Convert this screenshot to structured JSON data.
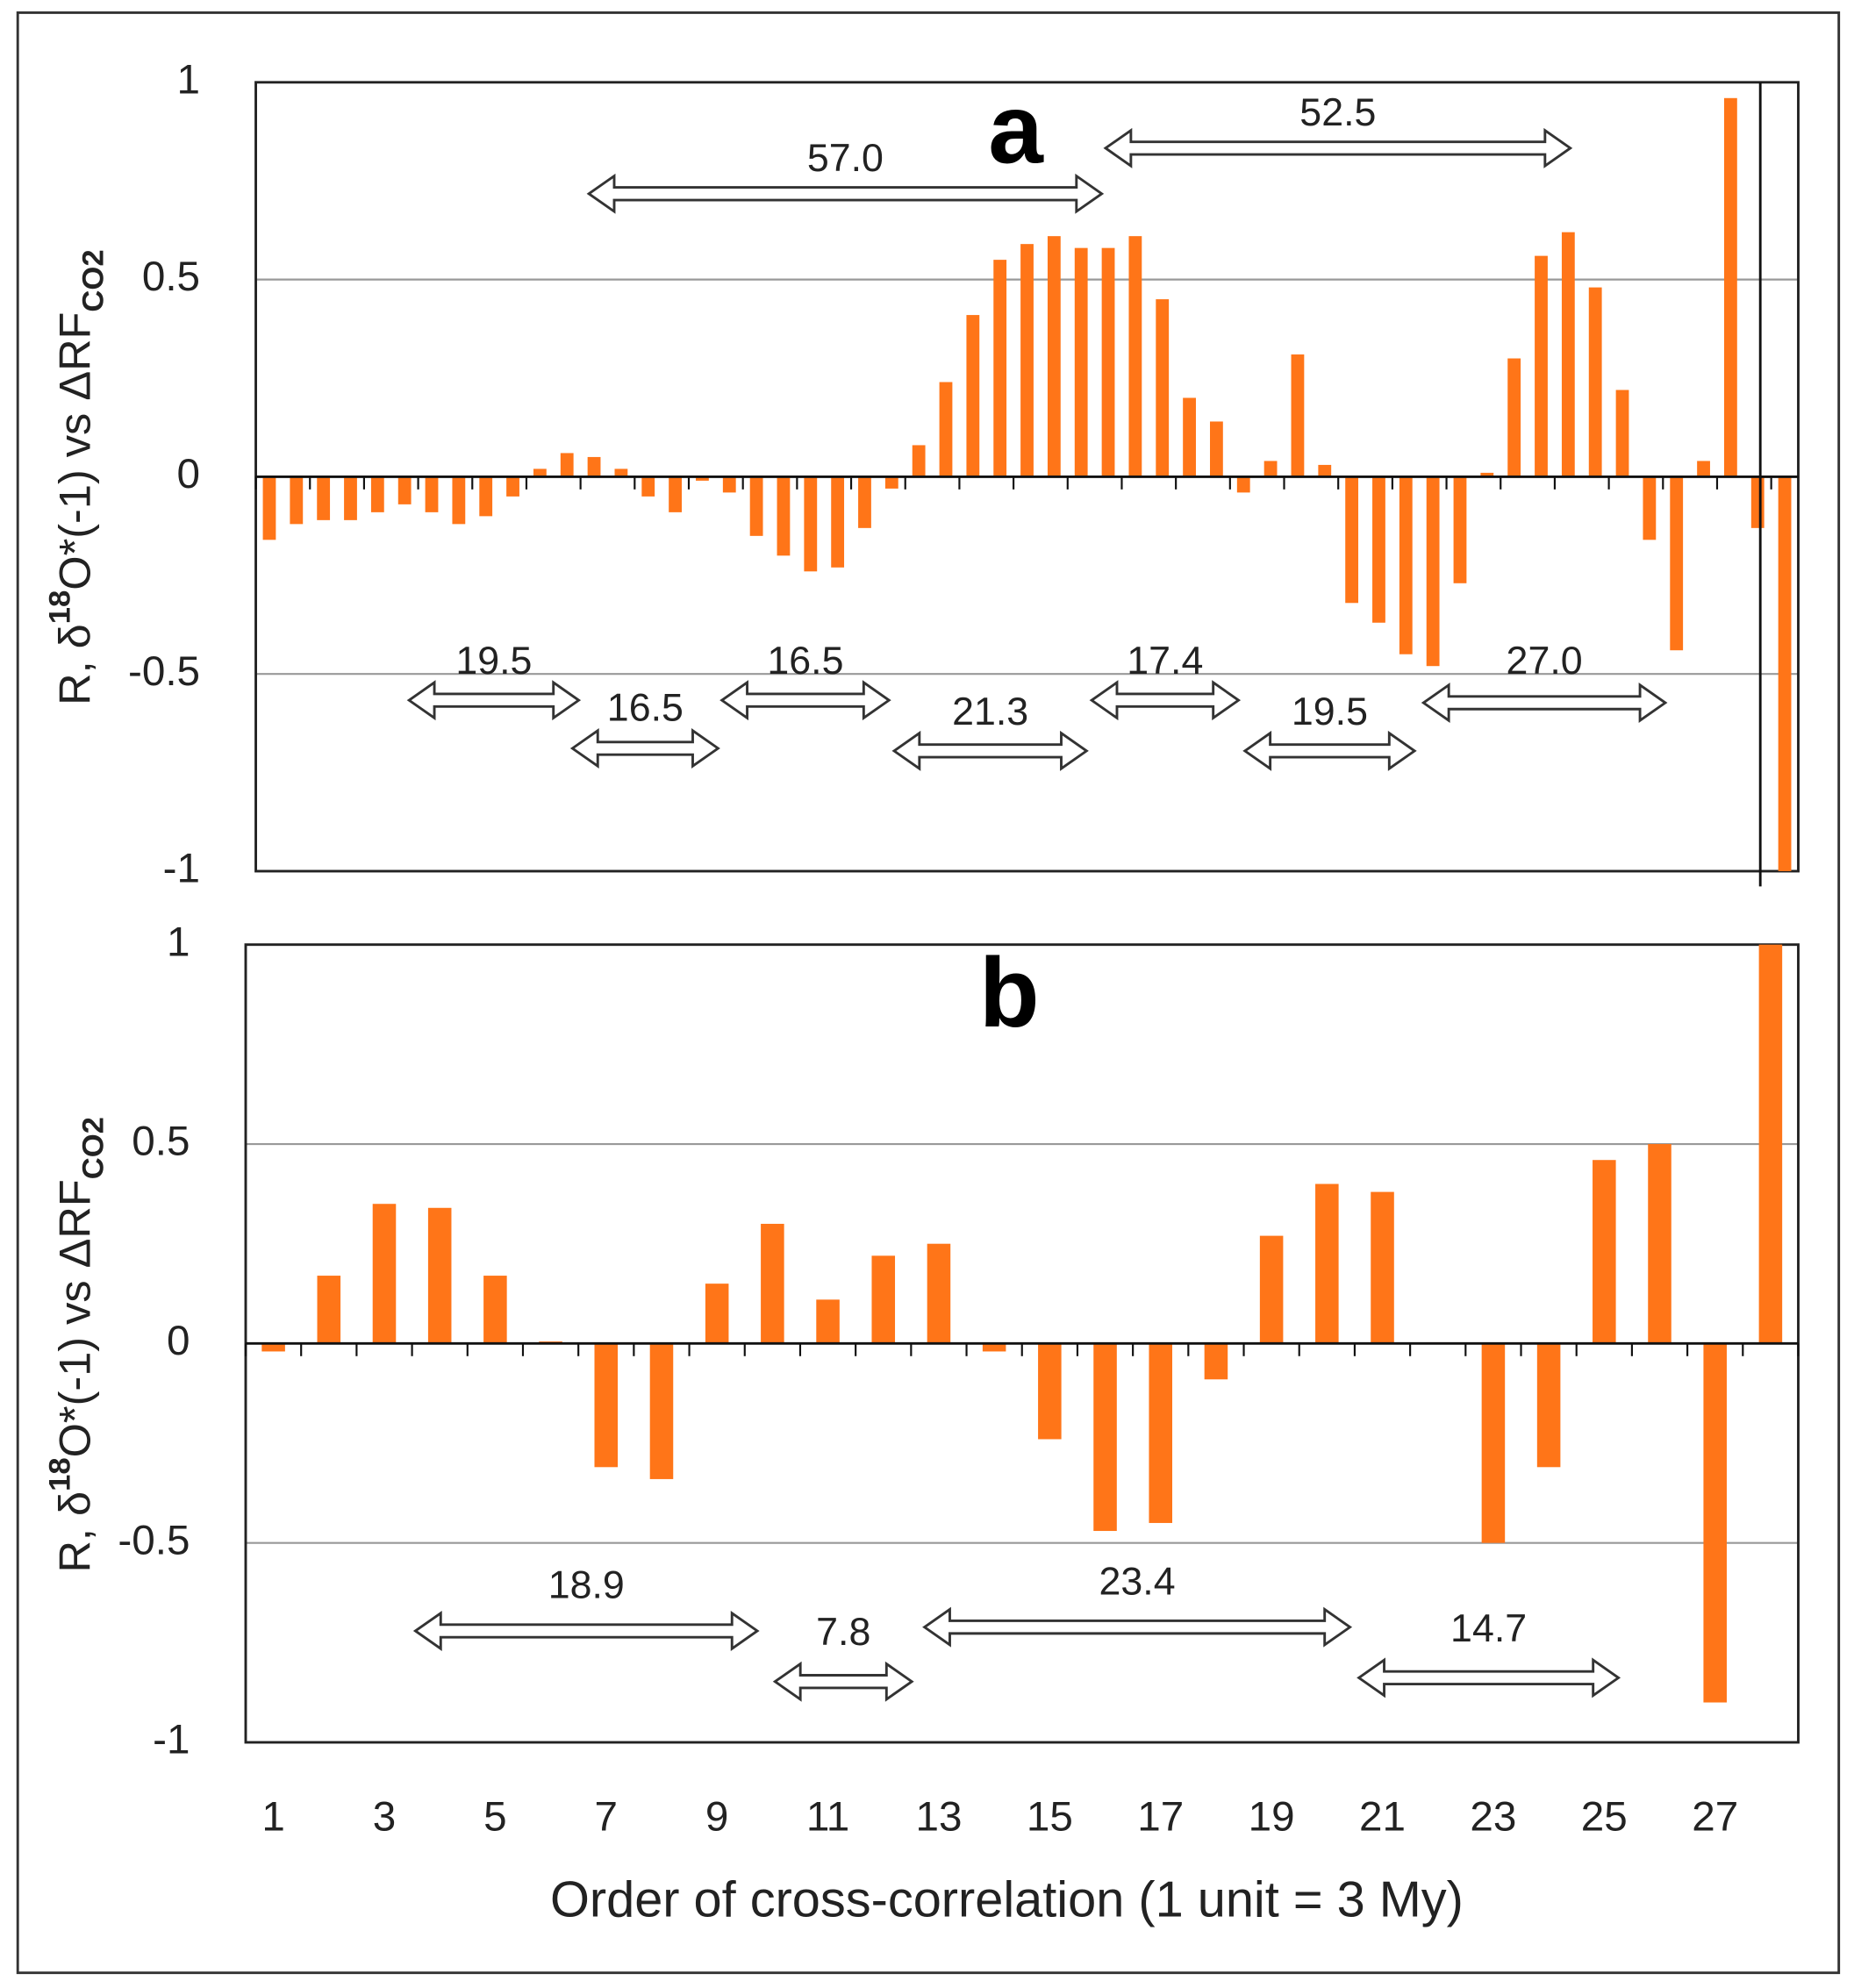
{
  "chart_data": [
    {
      "type": "bar",
      "title": "a",
      "color": "#ff7518",
      "ylabel": [
        "R, δ",
        "18",
        "O*(-1) vs ΔRF",
        "CO2"
      ],
      "categories": [
        null,
        null,
        null,
        null,
        null,
        null,
        null,
        null,
        null,
        null,
        null,
        null,
        null,
        null,
        null,
        null,
        null,
        null,
        null,
        null,
        null,
        null,
        null,
        null,
        null,
        null,
        null,
        null,
        null,
        null,
        null,
        null,
        null,
        null,
        null,
        null,
        null,
        null,
        null,
        null,
        null,
        null,
        null,
        null,
        null,
        null,
        null,
        null,
        null,
        null,
        null,
        null,
        null,
        null,
        null,
        null,
        null
      ],
      "values": [
        -0.16,
        -0.12,
        -0.11,
        -0.11,
        -0.09,
        -0.07,
        -0.09,
        -0.12,
        -0.1,
        -0.05,
        0.02,
        0.06,
        0.05,
        0.02,
        -0.05,
        -0.09,
        -0.01,
        -0.04,
        -0.15,
        -0.2,
        -0.24,
        -0.23,
        -0.13,
        -0.03,
        0.08,
        0.24,
        0.41,
        0.55,
        0.59,
        0.61,
        0.58,
        0.58,
        0.61,
        0.45,
        0.2,
        0.14,
        -0.04,
        0.04,
        0.31,
        0.03,
        -0.32,
        -0.37,
        -0.45,
        -0.48,
        -0.27,
        0.01,
        0.3,
        0.56,
        0.62,
        0.48,
        0.22,
        -0.16,
        -0.44,
        0.04,
        0.96,
        -0.13,
        -1.0
      ],
      "ylim": [
        -1,
        1
      ],
      "yticks": [
        1,
        0.5,
        0,
        -0.5,
        -1
      ],
      "grid": true,
      "annotations": [
        "57.0",
        "52.5",
        "19.5",
        "16.5",
        "16.5",
        "21.3",
        "17.4",
        "19.5",
        "27.0"
      ]
    },
    {
      "type": "bar",
      "title": "b",
      "color": "#ff7518",
      "ylabel": [
        "R, δ",
        "18",
        "O*(-1) vs ΔRF",
        "CO2"
      ],
      "xlabel": "Order of cross-correlation (1 unit = 3 My)",
      "categories": [
        "1",
        null,
        "3",
        null,
        "5",
        null,
        "7",
        null,
        "9",
        null,
        "11",
        null,
        "13",
        null,
        "15",
        null,
        "17",
        null,
        "19",
        null,
        "21",
        null,
        "23",
        null,
        "25",
        null,
        "27",
        null
      ],
      "values": [
        -0.02,
        0.17,
        0.35,
        0.34,
        0.17,
        0.005,
        -0.31,
        -0.34,
        0.15,
        0.3,
        0.11,
        0.22,
        0.25,
        -0.02,
        -0.24,
        -0.47,
        -0.45,
        -0.09,
        0.27,
        0.4,
        0.38,
        0.003,
        -0.5,
        -0.31,
        0.46,
        0.5,
        -0.9,
        1.0
      ],
      "ylim": [
        -1,
        1
      ],
      "yticks": [
        1,
        0.5,
        0,
        -0.5,
        -1
      ],
      "grid": true,
      "annotations": [
        "18.9",
        "7.8",
        "23.4",
        "14.7"
      ]
    }
  ]
}
